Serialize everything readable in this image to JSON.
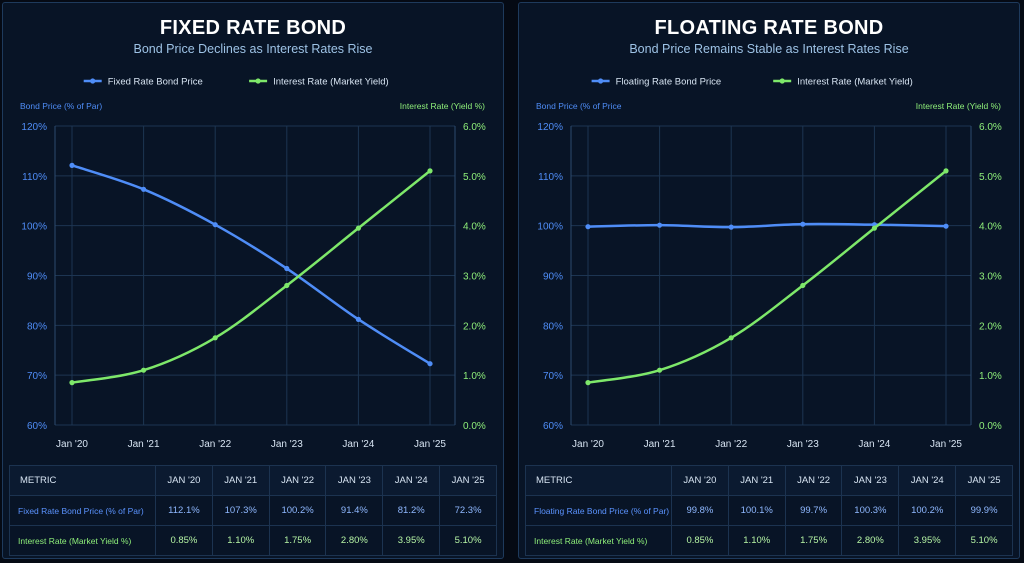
{
  "colors": {
    "price": "#4f8df7",
    "rate": "#7ee86a",
    "grid": "#1d3552",
    "bg": "#081426"
  },
  "chart_data": [
    {
      "type": "line",
      "title": "FIXED RATE BOND",
      "subtitle": "Bond Price Declines as Interest Rates Rise",
      "x": [
        "Jan '20",
        "Jan '21",
        "Jan '22",
        "Jan '23",
        "Jan '24",
        "Jan '25"
      ],
      "series": [
        {
          "name": "Fixed Rate Bond Price",
          "axis": "left",
          "values": [
            112.1,
            107.3,
            100.2,
            91.4,
            81.2,
            72.3
          ]
        },
        {
          "name": "Interest Rate (Market Yield)",
          "axis": "right",
          "values": [
            0.85,
            1.1,
            1.75,
            2.8,
            3.95,
            5.1
          ]
        }
      ],
      "ylabel_left": "Bond Price (% of Par)",
      "ylabel_right": "Interest Rate (Yield %)",
      "ylim_left": [
        60,
        120
      ],
      "ylim_right": [
        0,
        6
      ],
      "yticks_left": [
        "60%",
        "70%",
        "80%",
        "90%",
        "100%",
        "110%",
        "120%"
      ],
      "yticks_right": [
        "0.0%",
        "1.0%",
        "2.0%",
        "3.0%",
        "4.0%",
        "5.0%",
        "6.0%"
      ],
      "legend_position": "top-center",
      "grid": true
    },
    {
      "type": "line",
      "title": "FLOATING RATE BOND",
      "subtitle": "Bond Price Remains Stable as Interest Rates Rise",
      "x": [
        "Jan '20",
        "Jan '21",
        "Jan '22",
        "Jan '23",
        "Jan '24",
        "Jan '25"
      ],
      "series": [
        {
          "name": "Floating Rate Bond Price",
          "axis": "left",
          "values": [
            99.8,
            100.1,
            99.7,
            100.3,
            100.2,
            99.9
          ]
        },
        {
          "name": "Interest Rate (Market Yield)",
          "axis": "right",
          "values": [
            0.85,
            1.1,
            1.75,
            2.8,
            3.95,
            5.1
          ]
        }
      ],
      "ylabel_left": "Bond Price (% of Price",
      "ylabel_right": "Interest Rate (Yield %)",
      "ylim_left": [
        60,
        120
      ],
      "ylim_right": [
        0,
        6
      ],
      "yticks_left": [
        "60%",
        "70%",
        "80%",
        "90%",
        "100%",
        "110%",
        "120%"
      ],
      "yticks_right": [
        "0.0%",
        "1.0%",
        "2.0%",
        "3.0%",
        "4.0%",
        "5.0%",
        "6.0%"
      ],
      "legend_position": "top-center",
      "grid": true
    }
  ],
  "tables": [
    {
      "header": [
        "METRIC",
        "JAN '20",
        "JAN '21",
        "JAN '22",
        "JAN '23",
        "JAN '24",
        "JAN '25"
      ],
      "rows": [
        [
          "Fixed Rate Bond Price (% of Par)",
          "112.1%",
          "107.3%",
          "100.2%",
          "91.4%",
          "81.2%",
          "72.3%"
        ],
        [
          "Interest Rate (Market Yield %)",
          "0.85%",
          "1.10%",
          "1.75%",
          "2.80%",
          "3.95%",
          "5.10%"
        ]
      ]
    },
    {
      "header": [
        "METRIC",
        "JAN '20",
        "JAN '21",
        "JAN '22",
        "JAN '23",
        "JAN '24",
        "JAN '25"
      ],
      "rows": [
        [
          "Floating Rate Bond Price (% of Par)",
          "99.8%",
          "100.1%",
          "99.7%",
          "100.3%",
          "100.2%",
          "99.9%"
        ],
        [
          "Interest Rate (Market Yield %)",
          "0.85%",
          "1.10%",
          "1.75%",
          "2.80%",
          "3.95%",
          "5.10%"
        ]
      ]
    }
  ]
}
